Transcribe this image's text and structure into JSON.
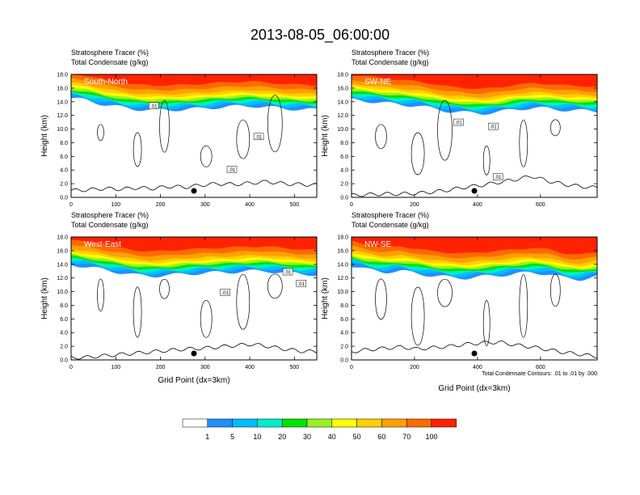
{
  "page": {
    "title": "2013-08-05_06:00:00"
  },
  "chart_data": [
    {
      "type": "contour",
      "id": "south-north",
      "panel_label": "South-North",
      "title_lines": [
        "Stratosphere Tracer   (%)",
        "Total Condensate   (g/kg)"
      ],
      "ylabel": "Height (km)",
      "xlabel": "",
      "xlim": [
        0,
        550
      ],
      "xticks": [
        "0",
        "100",
        "200",
        "300",
        "400",
        "500"
      ],
      "xtick_values": [
        0,
        100,
        200,
        300,
        400,
        500
      ],
      "ylim": [
        0,
        18
      ],
      "yticks": [
        "0.0",
        "2.0",
        "4.0",
        "6.0",
        "8.0",
        "10.0",
        "12.0",
        "14.0",
        "16.0",
        "18.0"
      ],
      "tracer_base_km": [
        14.5,
        14.2,
        13.6,
        13.2,
        12.9,
        12.8,
        12.8,
        12.9,
        13.0,
        13.2,
        13.3,
        13.4,
        13.2,
        13.0,
        12.9,
        12.8
      ],
      "terrain_km": [
        1.0,
        1.1,
        1.3,
        1.2,
        1.4,
        1.3,
        1.6,
        1.5,
        1.8,
        2.0,
        1.9,
        2.1,
        2.3,
        2.0,
        1.9,
        1.8
      ],
      "marker_x": 275,
      "contour_labels": [
        {
          "text": ".01",
          "x": 185,
          "y": 13.4
        },
        {
          "text": ".01",
          "x": 420,
          "y": 8.9
        },
        {
          "text": ".01",
          "x": 360,
          "y": 4.1
        }
      ]
    },
    {
      "type": "contour",
      "id": "sw-ne",
      "panel_label": "SW-NE",
      "title_lines": [
        "Stratosphere Tracer   (%)",
        "Total Condensate   (g/kg)"
      ],
      "ylabel": "Height (km)",
      "xlabel": "",
      "xlim": [
        0,
        780
      ],
      "xticks": [
        "0",
        "200",
        "400",
        "600"
      ],
      "xtick_values": [
        0,
        200,
        400,
        600
      ],
      "ylim": [
        0,
        18
      ],
      "yticks": [
        "0.0",
        "2.0",
        "4.0",
        "6.0",
        "8.0",
        "10.0",
        "12.0",
        "14.0",
        "16.0",
        "18.0"
      ],
      "tracer_base_km": [
        14.3,
        14.1,
        13.8,
        13.6,
        13.4,
        13.0,
        12.6,
        12.4,
        12.3,
        12.5,
        12.9,
        13.1,
        13.0,
        12.8,
        12.7,
        12.6
      ],
      "terrain_km": [
        0.3,
        0.4,
        0.5,
        0.5,
        0.6,
        0.8,
        1.1,
        1.5,
        1.8,
        2.2,
        2.6,
        3.1,
        2.4,
        1.9,
        1.6,
        1.4
      ],
      "marker_x": 390,
      "contour_labels": [
        {
          "text": ".01",
          "x": 340,
          "y": 11.0
        },
        {
          "text": ".01",
          "x": 450,
          "y": 10.4
        },
        {
          "text": ".01",
          "x": 465,
          "y": 3.0
        }
      ]
    },
    {
      "type": "contour",
      "id": "west-east",
      "panel_label": "West-East",
      "title_lines": [
        "Stratosphere Tracer   (%)",
        "Total Condensate   (g/kg)"
      ],
      "ylabel": "Height (km)",
      "xlabel": "Grid Point (dx=3km)",
      "xlim": [
        0,
        550
      ],
      "xticks": [
        "0",
        "100",
        "200",
        "300",
        "400",
        "500"
      ],
      "xtick_values": [
        0,
        100,
        200,
        300,
        400,
        500
      ],
      "ylim": [
        0,
        18
      ],
      "yticks": [
        "0.0",
        "2.0",
        "4.0",
        "6.0",
        "8.0",
        "10.0",
        "12.0",
        "14.0",
        "16.0",
        "18.0"
      ],
      "tracer_base_km": [
        14.0,
        13.6,
        13.2,
        12.8,
        12.4,
        12.3,
        12.4,
        12.6,
        12.7,
        12.8,
        12.9,
        13.0,
        13.0,
        12.8,
        12.6,
        12.5
      ],
      "terrain_km": [
        0.3,
        0.4,
        0.6,
        0.8,
        1.0,
        1.2,
        1.4,
        1.6,
        1.7,
        1.9,
        2.1,
        2.3,
        2.0,
        1.6,
        1.3,
        1.2
      ],
      "marker_x": 275,
      "contour_labels": [
        {
          "text": ".01",
          "x": 345,
          "y": 9.9
        },
        {
          "text": ".01",
          "x": 485,
          "y": 12.9
        },
        {
          "text": ".01",
          "x": 515,
          "y": 11.2
        }
      ]
    },
    {
      "type": "contour",
      "id": "nw-se",
      "panel_label": "NW-SE",
      "title_lines": [
        "Stratosphere Tracer   (%)",
        "Total Condensate   (g/kg)"
      ],
      "ylabel": "Height (km)",
      "xlabel": "Grid Point (dx=3km)",
      "xlim": [
        0,
        780
      ],
      "xticks": [
        "0",
        "200",
        "400",
        "600"
      ],
      "xtick_values": [
        0,
        200,
        400,
        600
      ],
      "ylim": [
        0,
        18
      ],
      "yticks": [
        "0.0",
        "2.0",
        "4.0",
        "6.0",
        "8.0",
        "10.0",
        "12.0",
        "14.0",
        "16.0",
        "18.0"
      ],
      "tracer_base_km": [
        13.8,
        13.2,
        12.9,
        13.0,
        12.7,
        12.3,
        12.1,
        12.0,
        12.2,
        12.4,
        12.6,
        12.8,
        12.6,
        12.0,
        11.8,
        12.2
      ],
      "terrain_km": [
        1.2,
        1.5,
        1.7,
        1.9,
        1.6,
        1.8,
        2.0,
        2.3,
        2.5,
        2.6,
        2.2,
        1.9,
        1.5,
        1.1,
        0.8,
        0.5
      ],
      "marker_x": 390,
      "contour_labels": [],
      "footnote": "Total Condensate Contours: .01 to .01 by .000"
    }
  ],
  "colorbar": {
    "levels": [
      "1",
      "5",
      "10",
      "20",
      "30",
      "40",
      "50",
      "60",
      "70",
      "100"
    ],
    "colors": [
      "#ffffff",
      "#1e90ff",
      "#00bfff",
      "#00eecc",
      "#00e400",
      "#9af020",
      "#ffff00",
      "#ffd000",
      "#ffa000",
      "#ff6a00",
      "#ff2200"
    ]
  }
}
